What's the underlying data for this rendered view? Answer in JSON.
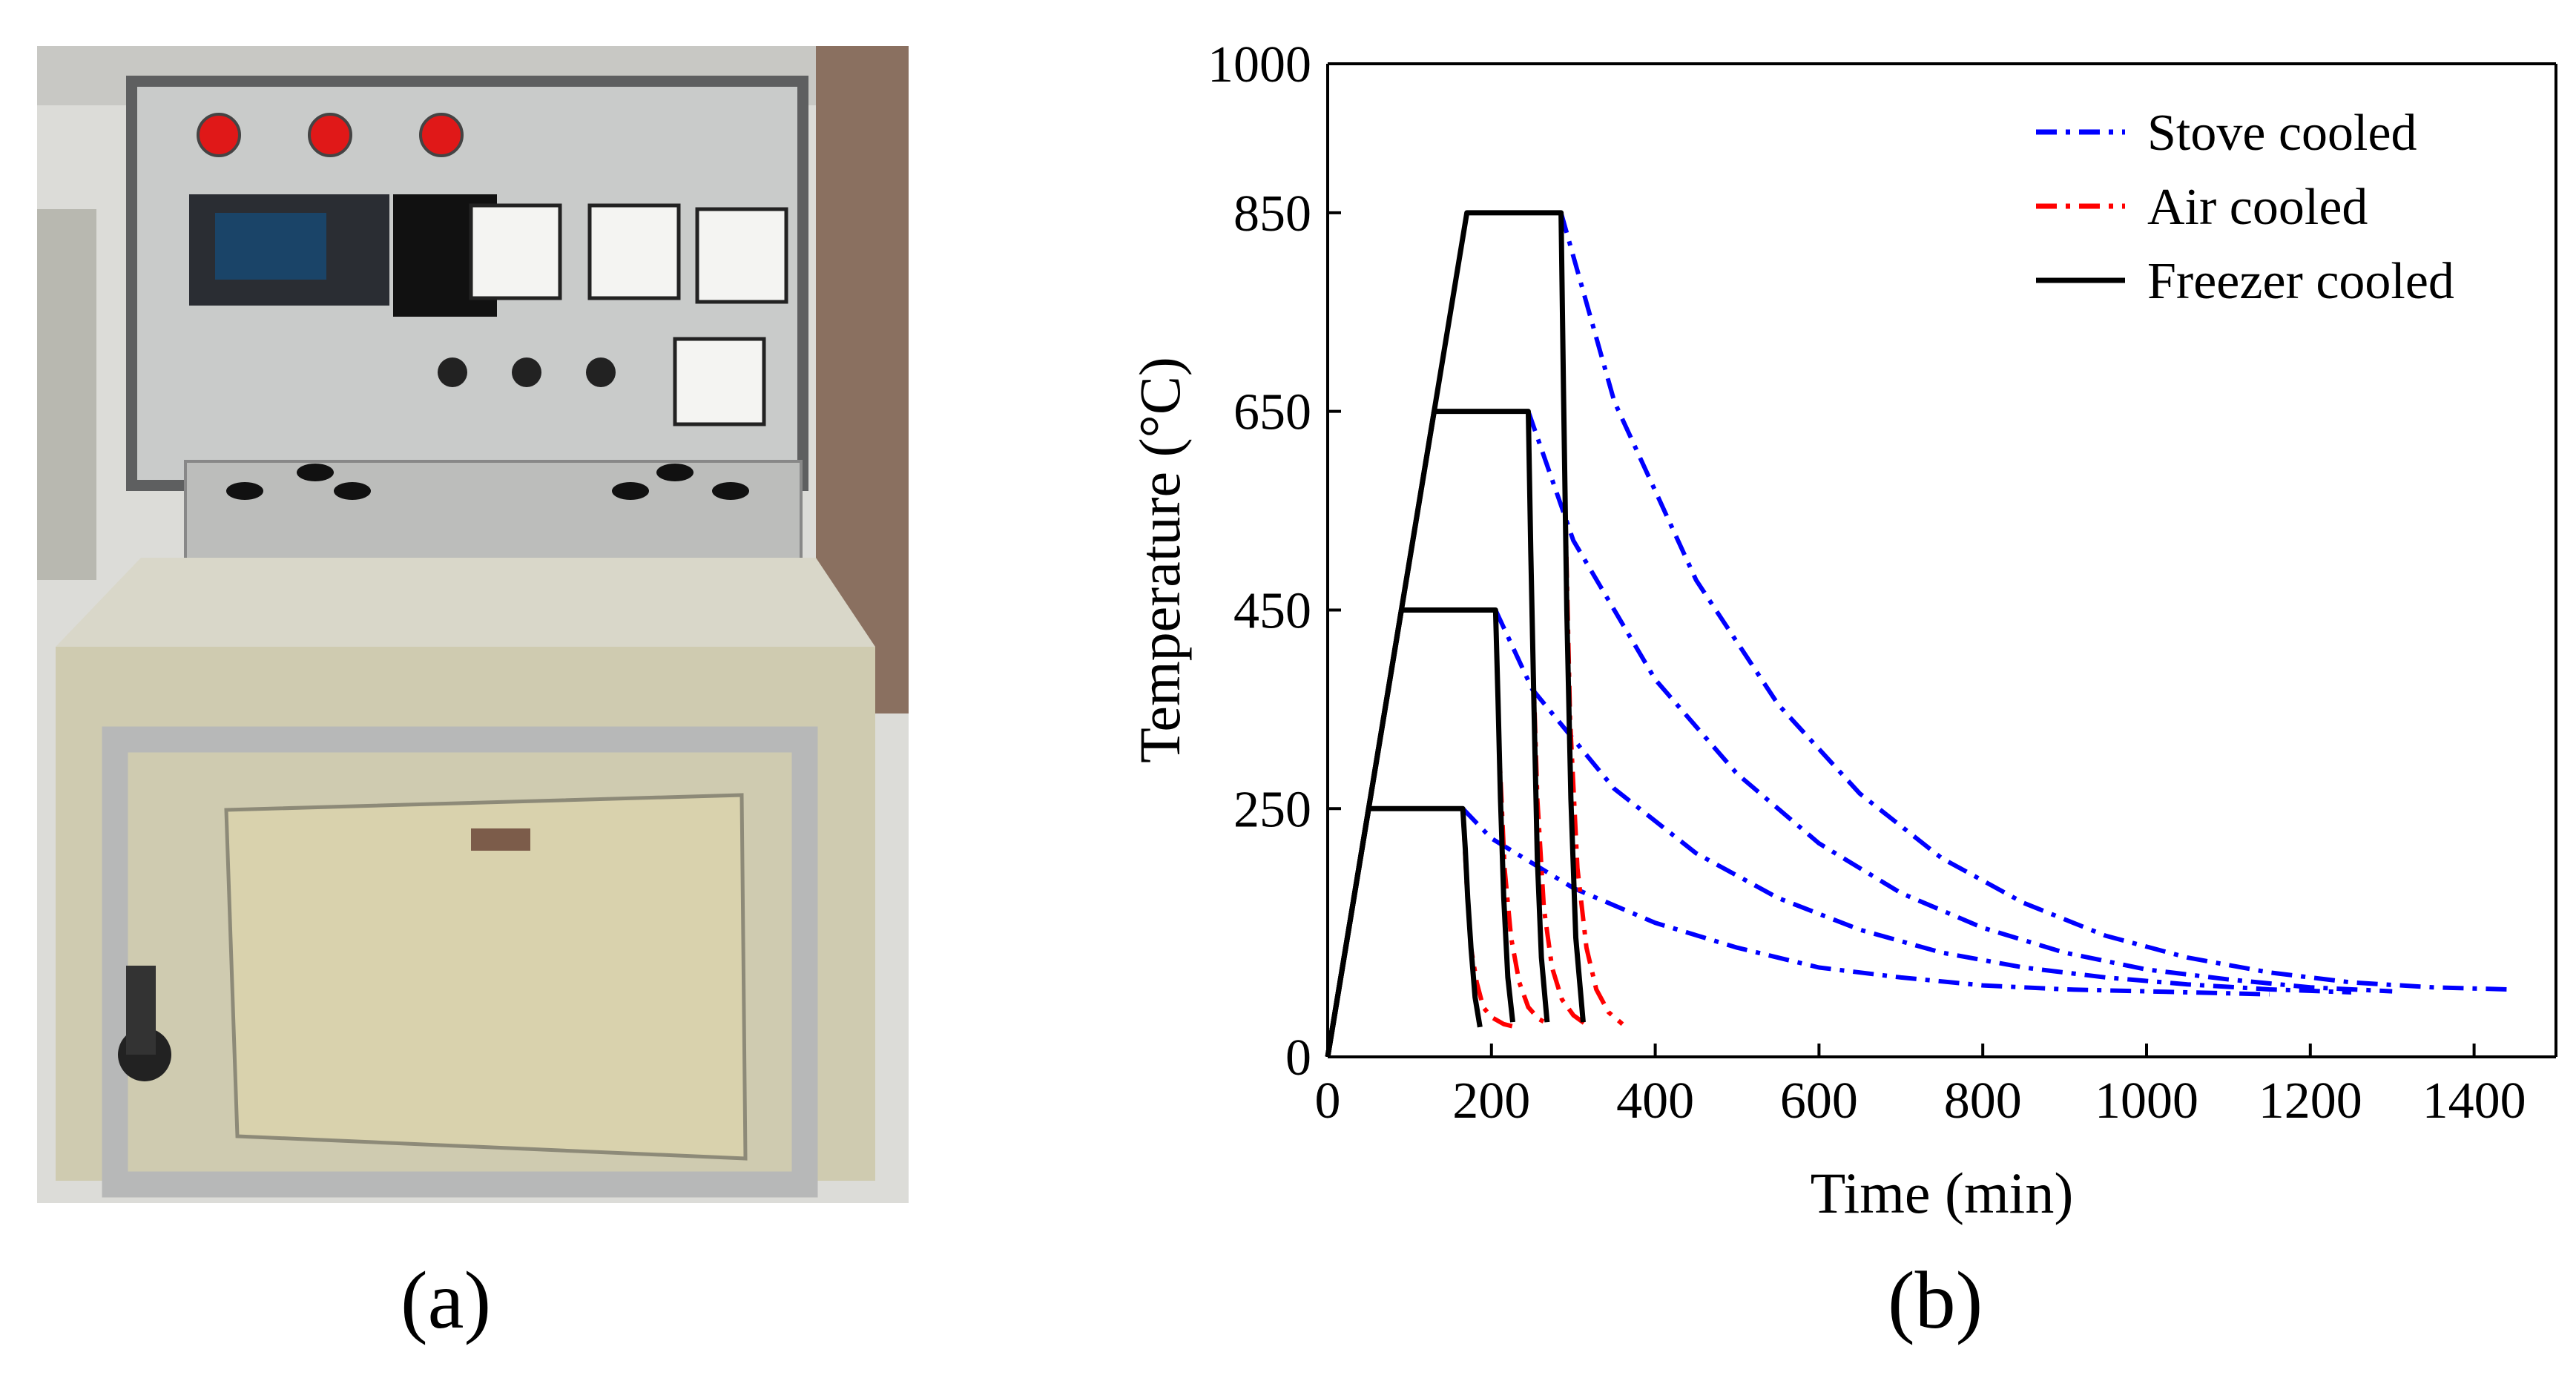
{
  "panels": {
    "a_label": "(a)",
    "b_label": "(b)",
    "photo_subject": "muffle-furnace-photo"
  },
  "chart_data": {
    "type": "line",
    "title": "",
    "xlabel": "Time (min)",
    "ylabel": "Temperature (°C)",
    "xlim": [
      0,
      1500
    ],
    "ylim": [
      0,
      1000
    ],
    "xticks": [
      0,
      200,
      400,
      600,
      800,
      1000,
      1200,
      1400
    ],
    "yticks": [
      0,
      250,
      450,
      650,
      850,
      1000
    ],
    "legend_position": "top-right",
    "grid": false,
    "colors": {
      "stove": "#0000ff",
      "air": "#ff0000",
      "freezer": "#000000"
    },
    "legend": [
      {
        "key": "stove",
        "label": "Stove cooled",
        "style": "dashdot"
      },
      {
        "key": "air",
        "label": "Air cooled",
        "style": "dashdot"
      },
      {
        "key": "freezer",
        "label": "Freezer cooled",
        "style": "solid"
      }
    ],
    "heating_profiles": [
      {
        "peak": 250,
        "heat_end": 50,
        "hold_end": 165
      },
      {
        "peak": 450,
        "heat_end": 90,
        "hold_end": 205
      },
      {
        "peak": 650,
        "heat_end": 130,
        "hold_end": 245
      },
      {
        "peak": 850,
        "heat_end": 170,
        "hold_end": 285
      }
    ],
    "series": [
      {
        "key": "freezer",
        "peak": 250,
        "x": [
          0,
          50,
          165,
          168,
          171,
          175,
          180,
          186
        ],
        "y": [
          0,
          250,
          250,
          210,
          160,
          110,
          60,
          30
        ]
      },
      {
        "key": "freezer",
        "peak": 450,
        "x": [
          0,
          90,
          205,
          208,
          211,
          215,
          220,
          226
        ],
        "y": [
          0,
          450,
          450,
          360,
          260,
          160,
          80,
          35
        ]
      },
      {
        "key": "freezer",
        "peak": 650,
        "x": [
          0,
          130,
          245,
          248,
          252,
          256,
          261,
          268
        ],
        "y": [
          0,
          650,
          650,
          510,
          350,
          200,
          100,
          35
        ]
      },
      {
        "key": "freezer",
        "peak": 850,
        "x": [
          0,
          170,
          285,
          288,
          292,
          297,
          303,
          312
        ],
        "y": [
          0,
          850,
          850,
          670,
          450,
          260,
          120,
          35
        ]
      },
      {
        "key": "air",
        "peak": 250,
        "x": [
          165,
          170,
          175,
          182,
          190,
          200,
          215,
          230
        ],
        "y": [
          250,
          170,
          110,
          75,
          50,
          40,
          33,
          30
        ]
      },
      {
        "key": "air",
        "peak": 450,
        "x": [
          205,
          210,
          216,
          224,
          234,
          245,
          258,
          270
        ],
        "y": [
          450,
          300,
          190,
          120,
          75,
          50,
          38,
          33
        ]
      },
      {
        "key": "air",
        "peak": 650,
        "x": [
          245,
          250,
          256,
          264,
          274,
          286,
          300,
          315
        ],
        "y": [
          650,
          420,
          260,
          150,
          90,
          58,
          42,
          33
        ]
      },
      {
        "key": "air",
        "peak": 850,
        "x": [
          285,
          290,
          296,
          305,
          316,
          328,
          343,
          360
        ],
        "y": [
          850,
          560,
          340,
          190,
          110,
          68,
          45,
          33
        ]
      },
      {
        "key": "stove",
        "peak": 250,
        "x": [
          165,
          200,
          300,
          400,
          500,
          600,
          700,
          800,
          900,
          1000,
          1100,
          1150
        ],
        "y": [
          250,
          220,
          170,
          135,
          110,
          90,
          80,
          72,
          68,
          66,
          64,
          63
        ]
      },
      {
        "key": "stove",
        "peak": 450,
        "x": [
          205,
          250,
          350,
          450,
          550,
          650,
          750,
          850,
          950,
          1050,
          1150,
          1250
        ],
        "y": [
          450,
          370,
          270,
          205,
          160,
          128,
          105,
          90,
          80,
          73,
          68,
          65
        ]
      },
      {
        "key": "stove",
        "peak": 650,
        "x": [
          245,
          300,
          400,
          500,
          600,
          700,
          800,
          900,
          1000,
          1100,
          1200,
          1300
        ],
        "y": [
          650,
          520,
          380,
          285,
          215,
          165,
          130,
          105,
          88,
          78,
          70,
          66
        ]
      },
      {
        "key": "stove",
        "peak": 850,
        "x": [
          285,
          350,
          450,
          550,
          650,
          750,
          850,
          950,
          1050,
          1150,
          1250,
          1350,
          1440
        ],
        "y": [
          850,
          660,
          480,
          355,
          265,
          200,
          155,
          122,
          100,
          85,
          75,
          70,
          68
        ]
      }
    ]
  }
}
